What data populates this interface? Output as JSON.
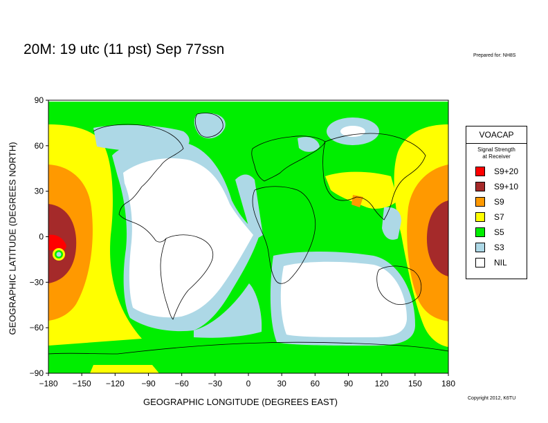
{
  "title": "20M:  19 utc (11 pst) Sep 77ssn",
  "prepared_for": "Prepared for: NH8S",
  "copyright": "Copyright 2012, K6TU",
  "axes": {
    "xlabel": "GEOGRAPHIC LONGITUDE (DEGREES EAST)",
    "ylabel": "GEOGRAPHIC LATITUDE (DEGREES NORTH)",
    "xticks": [
      "−180",
      "−150",
      "−120",
      "−90",
      "−60",
      "−30",
      "0",
      "30",
      "60",
      "90",
      "120",
      "150",
      "180"
    ],
    "yticks": [
      "90",
      "60",
      "30",
      "0",
      "−30",
      "−60",
      "−90"
    ],
    "xrange": [
      -180,
      180
    ],
    "yrange": [
      -90,
      90
    ]
  },
  "legend": {
    "title": "VOACAP",
    "subtitle_line1": "Signal Strength",
    "subtitle_line2": "at Receiver",
    "items": [
      {
        "label": "S9+20",
        "color": "#ff0000"
      },
      {
        "label": "S9+10",
        "color": "#a52a2a"
      },
      {
        "label": "S9",
        "color": "#ff9900"
      },
      {
        "label": "S7",
        "color": "#ffff00"
      },
      {
        "label": "S5",
        "color": "#00ee00"
      },
      {
        "label": "S3",
        "color": "#add8e6"
      },
      {
        "label": "NIL",
        "color": "#ffffff"
      }
    ]
  },
  "colors": {
    "s9p20": "#ff0000",
    "s9p10": "#a52a2a",
    "s9": "#ff9900",
    "s7": "#ffff00",
    "s5": "#00ee00",
    "s3": "#add8e6",
    "nil": "#ffffff",
    "coast": "#000000"
  }
}
